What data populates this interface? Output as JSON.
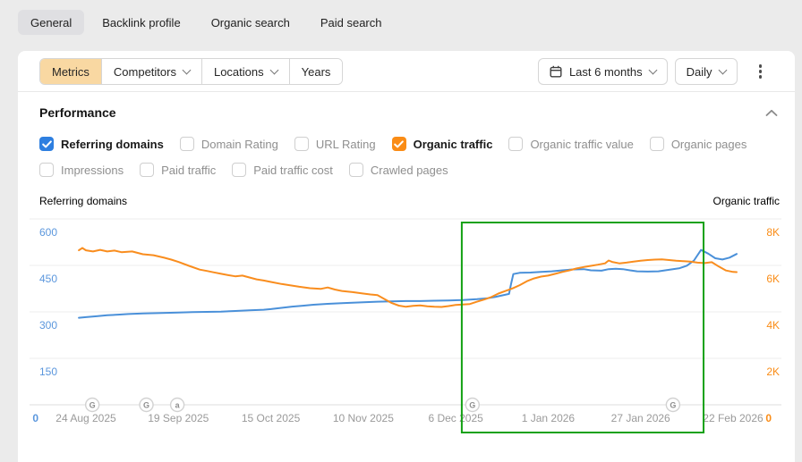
{
  "tabs": [
    {
      "label": "General",
      "active": true
    },
    {
      "label": "Backlink profile",
      "active": false
    },
    {
      "label": "Organic search",
      "active": false
    },
    {
      "label": "Paid search",
      "active": false
    }
  ],
  "toolbar": {
    "segments": [
      {
        "label": "Metrics",
        "active": true,
        "chevron": false
      },
      {
        "label": "Competitors",
        "active": false,
        "chevron": true
      },
      {
        "label": "Locations",
        "active": false,
        "chevron": true
      },
      {
        "label": "Years",
        "active": false,
        "chevron": false
      }
    ],
    "date_range_label": "Last 6 months",
    "granularity_label": "Daily",
    "kebab_icon": "more-vertical",
    "calendar_icon": "calendar"
  },
  "performance": {
    "title": "Performance",
    "collapse_icon": "chevron-up",
    "checkboxes": [
      {
        "label": "Referring domains",
        "checked": true,
        "color": "#2e7fe0"
      },
      {
        "label": "Domain Rating",
        "checked": false
      },
      {
        "label": "URL Rating",
        "checked": false
      },
      {
        "label": "Organic traffic",
        "checked": true,
        "color": "#fa8c16"
      },
      {
        "label": "Organic traffic value",
        "checked": false
      },
      {
        "label": "Organic pages",
        "checked": false
      },
      {
        "label": "Impressions",
        "checked": false
      },
      {
        "label": "Paid traffic",
        "checked": false
      },
      {
        "label": "Paid traffic cost",
        "checked": false
      },
      {
        "label": "Crawled pages",
        "checked": false
      }
    ]
  },
  "chart_data": {
    "type": "line",
    "total_days": 182,
    "left_axis": {
      "label": "Referring domains",
      "color": "#5b97dd",
      "line_color": "#4a90d9",
      "min": 0,
      "max": 600,
      "zero_label": "0",
      "ticks": [
        {
          "label": "600",
          "value": 600
        },
        {
          "label": "450",
          "value": 450
        },
        {
          "label": "300",
          "value": 300
        },
        {
          "label": "150",
          "value": 150
        },
        {
          "label": "0",
          "value": 0
        }
      ]
    },
    "right_axis": {
      "label": "Organic traffic",
      "color": "#fa8c16",
      "line_color": "#f98d1e",
      "min": 0,
      "max": 8000,
      "zero_label": "0",
      "ticks": [
        {
          "label": "8K",
          "value": 8000
        },
        {
          "label": "6K",
          "value": 6000
        },
        {
          "label": "4K",
          "value": 4000
        },
        {
          "label": "2K",
          "value": 2000
        }
      ]
    },
    "x_labels": [
      {
        "label": "24 Aug 2025",
        "day": 0
      },
      {
        "label": "19 Sep 2025",
        "day": 26
      },
      {
        "label": "15 Oct 2025",
        "day": 52
      },
      {
        "label": "10 Nov 2025",
        "day": 78
      },
      {
        "label": "6 Dec 2025",
        "day": 104
      },
      {
        "label": "1 Jan 2026",
        "day": 130
      },
      {
        "label": "27 Jan 2026",
        "day": 156
      },
      {
        "label": "22 Feb 2026",
        "day": 182
      }
    ],
    "series": [
      {
        "name": "Referring domains",
        "axis": "left",
        "color": "#4a90d9",
        "points": [
          [
            -2,
            281
          ],
          [
            0,
            283
          ],
          [
            3,
            286
          ],
          [
            6,
            289
          ],
          [
            9,
            291
          ],
          [
            12,
            293
          ],
          [
            16,
            295
          ],
          [
            20,
            296
          ],
          [
            26,
            298
          ],
          [
            30,
            299
          ],
          [
            34,
            300
          ],
          [
            38,
            301
          ],
          [
            42,
            303
          ],
          [
            46,
            305
          ],
          [
            50,
            307
          ],
          [
            52,
            309
          ],
          [
            55,
            313
          ],
          [
            58,
            317
          ],
          [
            61,
            320
          ],
          [
            64,
            323
          ],
          [
            68,
            326
          ],
          [
            72,
            328
          ],
          [
            78,
            331
          ],
          [
            82,
            333
          ],
          [
            86,
            334
          ],
          [
            90,
            335
          ],
          [
            94,
            335
          ],
          [
            98,
            336
          ],
          [
            102,
            337
          ],
          [
            106,
            338
          ],
          [
            110,
            341
          ],
          [
            113,
            344
          ],
          [
            115,
            348
          ],
          [
            117,
            353
          ],
          [
            119,
            358
          ],
          [
            119.6,
            392
          ],
          [
            120.2,
            422
          ],
          [
            122,
            426
          ],
          [
            125,
            427
          ],
          [
            128,
            429
          ],
          [
            131,
            431
          ],
          [
            134,
            434
          ],
          [
            137,
            437
          ],
          [
            140,
            438
          ],
          [
            142,
            434
          ],
          [
            145,
            433
          ],
          [
            147,
            438
          ],
          [
            149,
            439
          ],
          [
            151,
            438
          ],
          [
            153,
            434
          ],
          [
            155,
            431
          ],
          [
            158,
            430
          ],
          [
            161,
            431
          ],
          [
            164,
            436
          ],
          [
            167,
            441
          ],
          [
            169,
            449
          ],
          [
            171,
            466
          ],
          [
            173,
            500
          ],
          [
            175,
            488
          ],
          [
            177,
            473
          ],
          [
            179,
            469
          ],
          [
            181,
            475
          ],
          [
            183,
            487
          ]
        ]
      },
      {
        "name": "Organic traffic",
        "axis": "right",
        "color": "#f98d1e",
        "points": [
          [
            -2,
            6650
          ],
          [
            -1,
            6750
          ],
          [
            0,
            6650
          ],
          [
            2,
            6600
          ],
          [
            4,
            6670
          ],
          [
            6,
            6600
          ],
          [
            8,
            6640
          ],
          [
            10,
            6570
          ],
          [
            13,
            6600
          ],
          [
            16,
            6480
          ],
          [
            19,
            6440
          ],
          [
            22,
            6330
          ],
          [
            24,
            6250
          ],
          [
            26,
            6150
          ],
          [
            29,
            5980
          ],
          [
            32,
            5820
          ],
          [
            34,
            5760
          ],
          [
            36,
            5700
          ],
          [
            38,
            5640
          ],
          [
            40,
            5580
          ],
          [
            42,
            5530
          ],
          [
            44,
            5560
          ],
          [
            46,
            5480
          ],
          [
            48,
            5400
          ],
          [
            50,
            5350
          ],
          [
            52,
            5290
          ],
          [
            55,
            5200
          ],
          [
            58,
            5130
          ],
          [
            60,
            5080
          ],
          [
            63,
            5020
          ],
          [
            66,
            4990
          ],
          [
            68,
            5050
          ],
          [
            70,
            4960
          ],
          [
            72,
            4900
          ],
          [
            75,
            4850
          ],
          [
            78,
            4790
          ],
          [
            80,
            4750
          ],
          [
            82,
            4720
          ],
          [
            84,
            4550
          ],
          [
            86,
            4380
          ],
          [
            88,
            4270
          ],
          [
            90,
            4220
          ],
          [
            92,
            4260
          ],
          [
            94,
            4280
          ],
          [
            96,
            4240
          ],
          [
            98,
            4220
          ],
          [
            100,
            4210
          ],
          [
            102,
            4250
          ],
          [
            104,
            4300
          ],
          [
            106,
            4320
          ],
          [
            108,
            4340
          ],
          [
            110,
            4440
          ],
          [
            112,
            4530
          ],
          [
            114,
            4640
          ],
          [
            116,
            4790
          ],
          [
            118,
            4900
          ],
          [
            120,
            5010
          ],
          [
            122,
            5150
          ],
          [
            124,
            5320
          ],
          [
            126,
            5440
          ],
          [
            128,
            5520
          ],
          [
            130,
            5560
          ],
          [
            132,
            5640
          ],
          [
            134,
            5720
          ],
          [
            136,
            5790
          ],
          [
            138,
            5870
          ],
          [
            140,
            5930
          ],
          [
            142,
            5980
          ],
          [
            144,
            6030
          ],
          [
            146,
            6090
          ],
          [
            147,
            6210
          ],
          [
            148,
            6150
          ],
          [
            150,
            6090
          ],
          [
            152,
            6120
          ],
          [
            154,
            6160
          ],
          [
            156,
            6200
          ],
          [
            158,
            6230
          ],
          [
            160,
            6250
          ],
          [
            162,
            6260
          ],
          [
            164,
            6230
          ],
          [
            166,
            6200
          ],
          [
            168,
            6180
          ],
          [
            170,
            6160
          ],
          [
            172,
            6120
          ],
          [
            174,
            6100
          ],
          [
            176,
            6140
          ],
          [
            178,
            5950
          ],
          [
            180,
            5780
          ],
          [
            182,
            5720
          ],
          [
            183,
            5710
          ]
        ]
      }
    ],
    "markers": [
      {
        "day": 1.8,
        "letter": "G"
      },
      {
        "day": 17,
        "letter": "G"
      },
      {
        "day": 25.7,
        "letter": "a"
      },
      {
        "day": 108.7,
        "letter": "G"
      },
      {
        "day": 165.1,
        "letter": "G"
      }
    ],
    "highlight_box": {
      "start_day": 105.7,
      "end_day": 173.7,
      "color": "#12a112"
    },
    "grid_color": "#ededed",
    "axis_line_color": "#dcdcdc",
    "date_color": "#9a9a9a"
  }
}
